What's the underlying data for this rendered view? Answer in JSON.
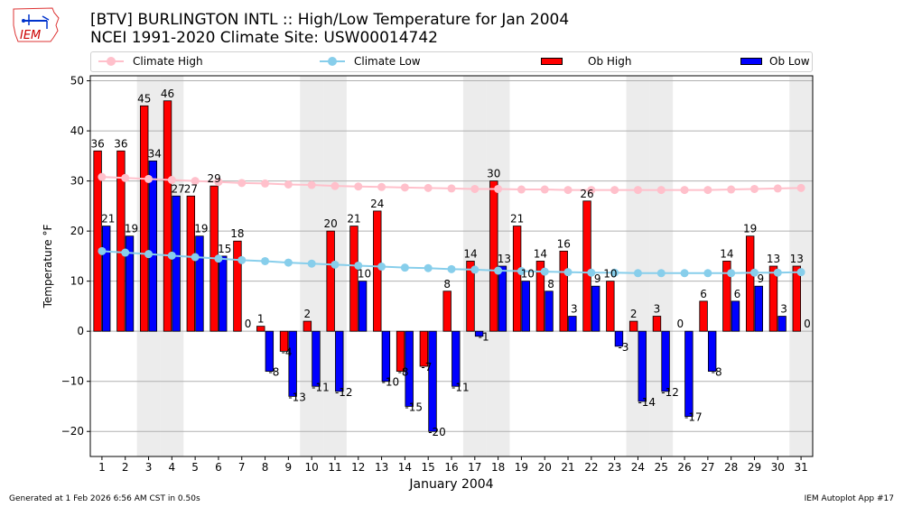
{
  "header": {
    "logo_text": "IEM",
    "title_line1": "[BTV] BURLINGTON INTL :: High/Low Temperature for Jan 2004",
    "title_line2": "NCEI 1991-2020 Climate Site: USW00014742"
  },
  "legend": {
    "climate_high": "Climate High",
    "climate_low": "Climate Low",
    "ob_high": "Ob High",
    "ob_low": "Ob Low"
  },
  "footer": {
    "generated": "Generated at 1 Feb 2026 6:56 AM CST in 0.50s",
    "app": "IEM Autoplot App #17"
  },
  "colors": {
    "ob_high": "#ff0000",
    "ob_low": "#0000ff",
    "climate_high": "#ffc0cb",
    "climate_low": "#87ceeb",
    "weekend": "#ececec"
  },
  "chart_data": {
    "type": "bar",
    "title": "[BTV] BURLINGTON INTL :: High/Low Temperature for Jan 2004",
    "xlabel": "January 2004",
    "ylabel": "Temperature °F",
    "xlim": [
      0.5,
      31.5
    ],
    "ylim": [
      -25,
      51
    ],
    "yticks": [
      -20,
      -10,
      0,
      10,
      20,
      30,
      40,
      50
    ],
    "ytick_labels": [
      "−20",
      "−10",
      "0",
      "10",
      "20",
      "30",
      "40",
      "50"
    ],
    "grid": "y",
    "legend_position": "top",
    "weekend_days": [
      3,
      4,
      10,
      11,
      17,
      18,
      24,
      25,
      31
    ],
    "categories": [
      "1",
      "2",
      "3",
      "4",
      "5",
      "6",
      "7",
      "8",
      "9",
      "10",
      "11",
      "12",
      "13",
      "14",
      "15",
      "16",
      "17",
      "18",
      "19",
      "20",
      "21",
      "22",
      "23",
      "24",
      "25",
      "26",
      "27",
      "28",
      "29",
      "30",
      "31"
    ],
    "series": [
      {
        "name": "Ob High",
        "kind": "bar",
        "values": [
          36,
          36,
          45,
          46,
          27,
          29,
          18,
          1,
          -4,
          2,
          20,
          21,
          24,
          -8,
          -7,
          8,
          14,
          30,
          21,
          14,
          16,
          26,
          10,
          2,
          3,
          0,
          6,
          14,
          19,
          13,
          13
        ]
      },
      {
        "name": "Ob Low",
        "kind": "bar",
        "values": [
          21,
          19,
          34,
          27,
          19,
          15,
          0,
          -8,
          -13,
          -11,
          -12,
          10,
          -10,
          -15,
          -20,
          -11,
          -1,
          13,
          10,
          8,
          3,
          9,
          -3,
          -14,
          -12,
          -17,
          -8,
          6,
          9,
          3,
          0
        ]
      },
      {
        "name": "Climate High",
        "kind": "line",
        "values": [
          30.8,
          30.6,
          30.4,
          30.2,
          30.0,
          29.8,
          29.6,
          29.5,
          29.3,
          29.2,
          29.0,
          28.9,
          28.8,
          28.7,
          28.6,
          28.5,
          28.4,
          28.4,
          28.3,
          28.3,
          28.2,
          28.2,
          28.2,
          28.2,
          28.2,
          28.2,
          28.2,
          28.3,
          28.4,
          28.5,
          28.6
        ]
      },
      {
        "name": "Climate Low",
        "kind": "line",
        "values": [
          16.0,
          15.7,
          15.4,
          15.1,
          14.8,
          14.5,
          14.2,
          14.0,
          13.7,
          13.5,
          13.3,
          13.1,
          12.9,
          12.7,
          12.6,
          12.4,
          12.3,
          12.1,
          12.0,
          11.9,
          11.8,
          11.7,
          11.7,
          11.6,
          11.6,
          11.6,
          11.6,
          11.6,
          11.7,
          11.7,
          11.8
        ]
      }
    ]
  }
}
